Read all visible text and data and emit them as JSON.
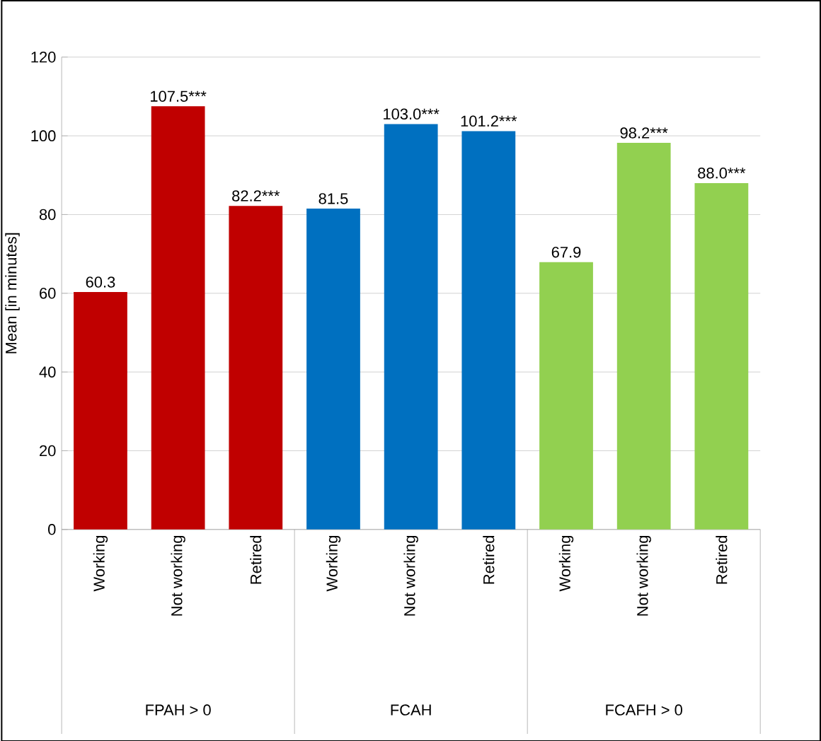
{
  "chart_data": {
    "type": "bar",
    "ylabel": "Mean [in minutes]",
    "categories": [
      "Working",
      "Not working",
      "Retired",
      "Working",
      "Not working",
      "Retired",
      "Working",
      "Not working",
      "Retired"
    ],
    "values": [
      60.3,
      107.5,
      82.2,
      81.5,
      103.0,
      101.2,
      67.9,
      98.2,
      88.0
    ],
    "value_labels": [
      "60.3",
      "107.5***",
      "82.2***",
      "81.5",
      "103.0***",
      "101.2***",
      "67.9",
      "98.2***",
      "88.0***"
    ],
    "colors": [
      "#c00000",
      "#c00000",
      "#c00000",
      "#0070c0",
      "#0070c0",
      "#0070c0",
      "#92d050",
      "#92d050",
      "#92d050"
    ],
    "annotations": [
      "FPAH > 0",
      "FCAH",
      "FCAFH > 0"
    ],
    "ylim": [
      0,
      120
    ],
    "yticks": [
      0,
      20,
      40,
      60,
      80,
      100,
      120
    ],
    "grid": "y"
  }
}
